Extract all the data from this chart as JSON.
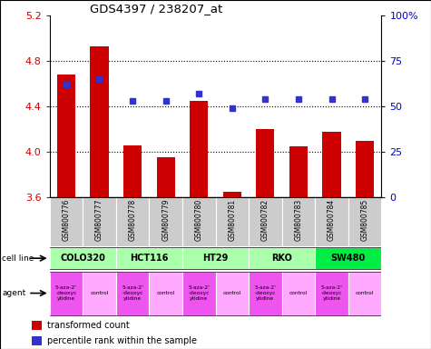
{
  "title": "GDS4397 / 238207_at",
  "samples": [
    "GSM800776",
    "GSM800777",
    "GSM800778",
    "GSM800779",
    "GSM800780",
    "GSM800781",
    "GSM800782",
    "GSM800783",
    "GSM800784",
    "GSM800785"
  ],
  "transformed_count": [
    4.68,
    4.93,
    4.06,
    3.95,
    4.45,
    3.65,
    4.2,
    4.05,
    4.18,
    4.1
  ],
  "percentile_rank": [
    62,
    65,
    53,
    53,
    57,
    49,
    54,
    54,
    54,
    54
  ],
  "ylim_left": [
    3.6,
    5.2
  ],
  "ylim_right": [
    0,
    100
  ],
  "yticks_left": [
    3.6,
    4.0,
    4.4,
    4.8,
    5.2
  ],
  "yticks_right": [
    0,
    25,
    50,
    75,
    100
  ],
  "bar_color": "#cc0000",
  "dot_color": "#3333cc",
  "hgrid_at": [
    4.0,
    4.4,
    4.8
  ],
  "cell_lines": [
    {
      "name": "COLO320",
      "start": 0,
      "end": 2,
      "color": "#aaffaa"
    },
    {
      "name": "HCT116",
      "start": 2,
      "end": 4,
      "color": "#aaffaa"
    },
    {
      "name": "HT29",
      "start": 4,
      "end": 6,
      "color": "#aaffaa"
    },
    {
      "name": "RKO",
      "start": 6,
      "end": 8,
      "color": "#aaffaa"
    },
    {
      "name": "SW480",
      "start": 8,
      "end": 10,
      "color": "#00ee44"
    }
  ],
  "agents": [
    {
      "label": "5-aza-2'\n-deoxyc\nytidine",
      "color": "#ee55ee",
      "col": 0
    },
    {
      "label": "control",
      "color": "#ffaaff",
      "col": 1
    },
    {
      "label": "5-aza-2'\n-deoxyc\nytidine",
      "color": "#ee55ee",
      "col": 2
    },
    {
      "label": "control",
      "color": "#ffaaff",
      "col": 3
    },
    {
      "label": "5-aza-2'\n-deoxyc\nytidine",
      "color": "#ee55ee",
      "col": 4
    },
    {
      "label": "control",
      "color": "#ffaaff",
      "col": 5
    },
    {
      "label": "5-aza-2'\n-deoxyc\nytidine",
      "color": "#ee55ee",
      "col": 6
    },
    {
      "label": "control",
      "color": "#ffaaff",
      "col": 7
    },
    {
      "label": "5-aza-2'\n-deoxyc\nytidine",
      "color": "#ee55ee",
      "col": 8
    },
    {
      "label": "control",
      "color": "#ffaaff",
      "col": 9
    }
  ],
  "tick_color_left": "#cc0000",
  "tick_color_right": "#0000cc",
  "sample_bg": "#cccccc",
  "fig_width": 4.75,
  "fig_height": 3.84,
  "dpi": 100
}
